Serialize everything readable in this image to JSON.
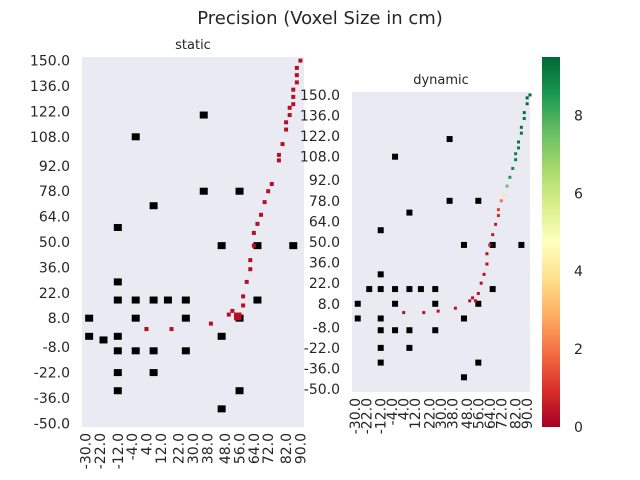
{
  "chart_data": {
    "type": "heatmap",
    "title": "Precision (Voxel Size in cm)",
    "colorbar": {
      "colormap": "RdYlGn",
      "range": [
        0,
        9.5
      ],
      "ticks": [
        "0",
        "2",
        "4",
        "6",
        "8"
      ],
      "colors": [
        "#a50026",
        "#d73027",
        "#f46d43",
        "#fdae61",
        "#fee08b",
        "#ffffbf",
        "#d9ef8b",
        "#a6d96a",
        "#66bd63",
        "#1a9850",
        "#006837"
      ]
    },
    "panels": [
      {
        "name": "static",
        "title": "static",
        "xlim": [
          -32,
          92
        ],
        "ylim": [
          -52,
          152
        ],
        "x_ticks": [
          "-30.0",
          "-22.0",
          "-12.0",
          "-4.0",
          "4.0",
          "12.0",
          "22.0",
          "30.0",
          "38.0",
          "48.0",
          "56.0",
          "64.0",
          "72.0",
          "82.0",
          "90.0"
        ],
        "x_tick_values": [
          -30,
          -22,
          -12,
          -4,
          4,
          12,
          22,
          30,
          38,
          48,
          56,
          64,
          72,
          82,
          90
        ],
        "y_ticks": [
          "150.0",
          "136.0",
          "122.0",
          "108.0",
          "92.0",
          "78.0",
          "64.0",
          "50.0",
          "36.0",
          "22.0",
          "8.0",
          "-8.0",
          "-22.0",
          "-36.0",
          "-50.0"
        ],
        "y_tick_values": [
          150,
          136,
          122,
          108,
          92,
          78,
          64,
          50,
          36,
          22,
          8,
          -8,
          -22,
          -36,
          -50
        ],
        "black_cells": [
          [
            -28,
            8
          ],
          [
            -28,
            -2
          ],
          [
            -20,
            -4
          ],
          [
            -12,
            58
          ],
          [
            -12,
            28
          ],
          [
            -12,
            18
          ],
          [
            -12,
            -2
          ],
          [
            -12,
            -10
          ],
          [
            -12,
            -22
          ],
          [
            -12,
            -32
          ],
          [
            -2,
            108
          ],
          [
            -2,
            18
          ],
          [
            -2,
            8
          ],
          [
            -2,
            -10
          ],
          [
            8,
            70
          ],
          [
            8,
            18
          ],
          [
            8,
            -10
          ],
          [
            8,
            -22
          ],
          [
            16,
            18
          ],
          [
            26,
            18
          ],
          [
            26,
            8
          ],
          [
            26,
            -10
          ],
          [
            36,
            120
          ],
          [
            36,
            78
          ],
          [
            46,
            48
          ],
          [
            46,
            -2
          ],
          [
            46,
            -42
          ],
          [
            56,
            78
          ],
          [
            56,
            8
          ],
          [
            56,
            -32
          ],
          [
            66,
            48
          ],
          [
            66,
            18
          ],
          [
            86,
            48
          ]
        ],
        "red_cells": [
          [
            4,
            2
          ],
          [
            4,
            2
          ],
          [
            18,
            2
          ],
          [
            40,
            5
          ],
          [
            50,
            10
          ],
          [
            52,
            12
          ],
          [
            54,
            10
          ],
          [
            54,
            8
          ],
          [
            56,
            10
          ],
          [
            56,
            8
          ],
          [
            58,
            15
          ],
          [
            58,
            20
          ],
          [
            60,
            28
          ],
          [
            62,
            35
          ],
          [
            62,
            40
          ],
          [
            64,
            48
          ],
          [
            64,
            55
          ],
          [
            66,
            60
          ],
          [
            68,
            65
          ],
          [
            70,
            72
          ],
          [
            72,
            78
          ],
          [
            74,
            82
          ],
          [
            78,
            95
          ],
          [
            78,
            98
          ],
          [
            80,
            104
          ],
          [
            82,
            112
          ],
          [
            82,
            116
          ],
          [
            84,
            120
          ],
          [
            84,
            124
          ],
          [
            86,
            126
          ],
          [
            86,
            130
          ],
          [
            86,
            134
          ],
          [
            88,
            138
          ],
          [
            88,
            142
          ],
          [
            88,
            146
          ],
          [
            90,
            150
          ]
        ],
        "red_value": 0.3
      },
      {
        "name": "dynamic",
        "title": "dynamic",
        "xlim": [
          -32,
          92
        ],
        "ylim": [
          -52,
          152
        ],
        "x_ticks": [
          "-30.0",
          "-22.0",
          "-12.0",
          "-4.0",
          "4.0",
          "12.0",
          "22.0",
          "30.0",
          "38.0",
          "48.0",
          "56.0",
          "64.0",
          "72.0",
          "82.0",
          "90.0"
        ],
        "x_tick_values": [
          -30,
          -22,
          -12,
          -4,
          4,
          12,
          22,
          30,
          38,
          48,
          56,
          64,
          72,
          82,
          90
        ],
        "y_ticks": [
          "150.0",
          "136.0",
          "122.0",
          "108.0",
          "92.0",
          "78.0",
          "64.0",
          "50.0",
          "36.0",
          "22.0",
          "8.0",
          "-8.0",
          "-22.0",
          "-36.0",
          "-50.0"
        ],
        "y_tick_values": [
          150,
          136,
          122,
          108,
          92,
          78,
          64,
          50,
          36,
          22,
          8,
          -8,
          -22,
          -36,
          -50
        ],
        "black_cells": [
          [
            -28,
            8
          ],
          [
            -28,
            -2
          ],
          [
            -20,
            18
          ],
          [
            -12,
            58
          ],
          [
            -12,
            28
          ],
          [
            -12,
            18
          ],
          [
            -12,
            -2
          ],
          [
            -12,
            -10
          ],
          [
            -12,
            -22
          ],
          [
            -12,
            -32
          ],
          [
            -2,
            108
          ],
          [
            -2,
            18
          ],
          [
            -2,
            8
          ],
          [
            -2,
            -10
          ],
          [
            8,
            70
          ],
          [
            8,
            18
          ],
          [
            8,
            -10
          ],
          [
            8,
            -22
          ],
          [
            16,
            18
          ],
          [
            26,
            18
          ],
          [
            26,
            8
          ],
          [
            26,
            -10
          ],
          [
            36,
            120
          ],
          [
            36,
            78
          ],
          [
            46,
            48
          ],
          [
            46,
            -2
          ],
          [
            46,
            -42
          ],
          [
            56,
            78
          ],
          [
            56,
            8
          ],
          [
            56,
            -32
          ],
          [
            66,
            48
          ],
          [
            66,
            18
          ],
          [
            86,
            48
          ]
        ],
        "colored_cells": [
          [
            4,
            2,
            0.3
          ],
          [
            18,
            2,
            0.3
          ],
          [
            28,
            3,
            0.3
          ],
          [
            40,
            5,
            0.3
          ],
          [
            50,
            10,
            0.3
          ],
          [
            52,
            12,
            0.3
          ],
          [
            54,
            10,
            0.3
          ],
          [
            56,
            15,
            0.3
          ],
          [
            58,
            22,
            0.3
          ],
          [
            60,
            28,
            0.3
          ],
          [
            62,
            35,
            0.3
          ],
          [
            62,
            42,
            0.3
          ],
          [
            64,
            48,
            0.5
          ],
          [
            66,
            55,
            0.5
          ],
          [
            68,
            62,
            0.6
          ],
          [
            70,
            68,
            0.8
          ],
          [
            70,
            72,
            1.2
          ],
          [
            72,
            78,
            2.0
          ],
          [
            74,
            82,
            4.0
          ],
          [
            76,
            88,
            7.5
          ],
          [
            78,
            94,
            8.5
          ],
          [
            80,
            100,
            8.8
          ],
          [
            82,
            106,
            9.0
          ],
          [
            82,
            110,
            9.0
          ],
          [
            84,
            114,
            9.0
          ],
          [
            84,
            118,
            9.2
          ],
          [
            86,
            124,
            9.2
          ],
          [
            86,
            128,
            9.3
          ],
          [
            88,
            134,
            9.3
          ],
          [
            88,
            138,
            9.4
          ],
          [
            90,
            144,
            9.4
          ],
          [
            90,
            148,
            9.5
          ],
          [
            92,
            150,
            9.5
          ]
        ]
      }
    ]
  }
}
